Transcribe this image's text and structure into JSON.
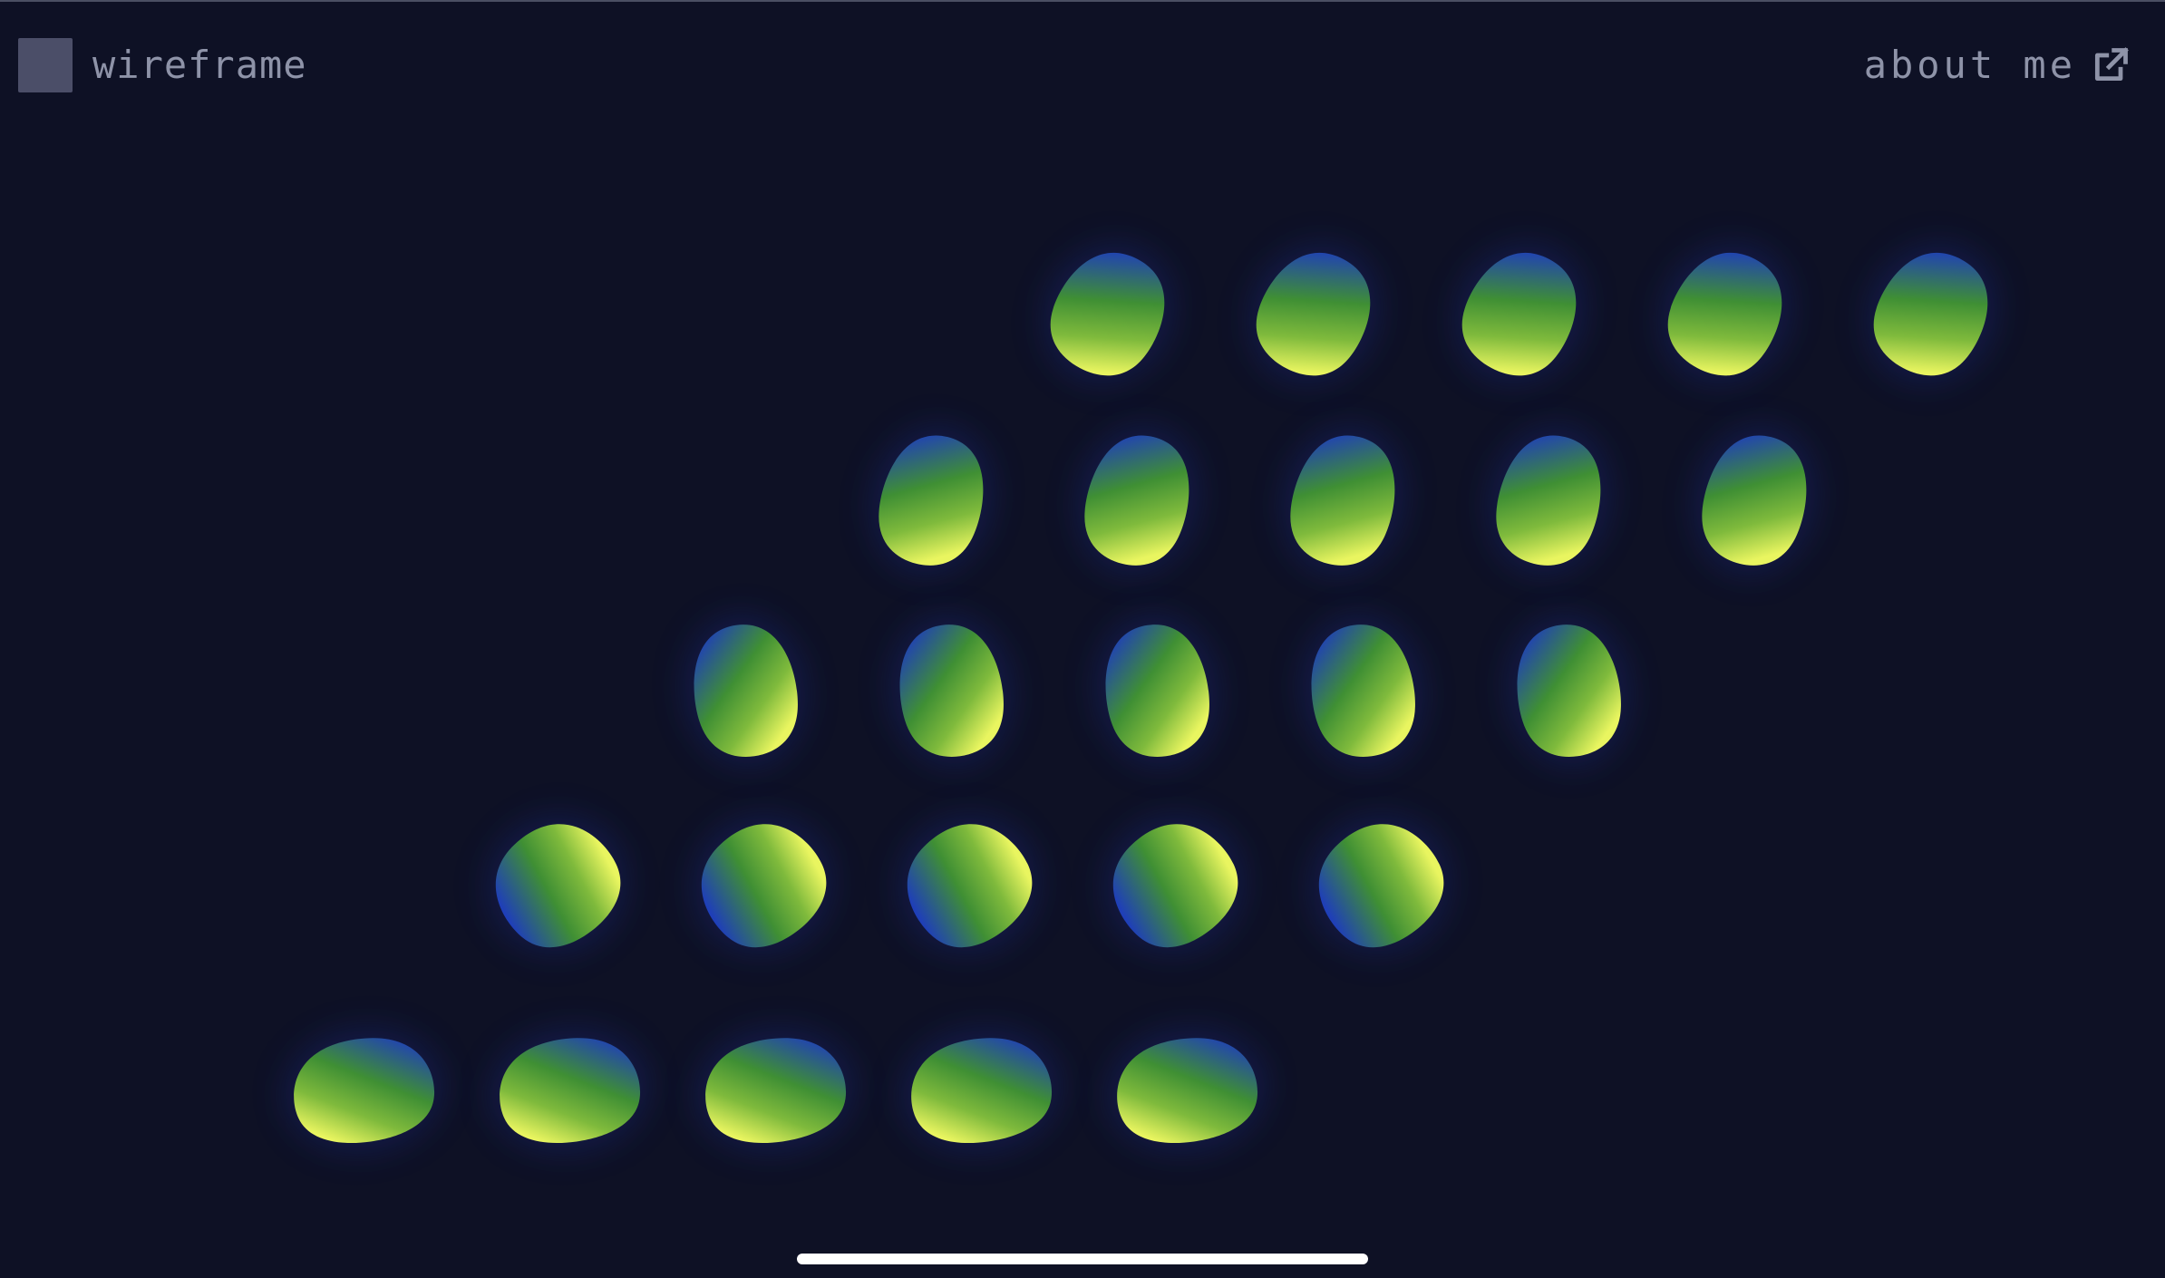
{
  "header": {
    "wireframe_label": "wireframe",
    "about_label": "about me",
    "about_icon": "external-link-icon"
  },
  "colors": {
    "background": "#0e1125",
    "egg_highlight": "#e9f560",
    "egg_mid": "#3f8f34",
    "egg_shadow": "#1f3fb8",
    "text": "#8e93a8",
    "toggle": "#4b4e68"
  },
  "scene": {
    "rows": 5,
    "eggs_per_row": 5,
    "shape": "egg"
  }
}
